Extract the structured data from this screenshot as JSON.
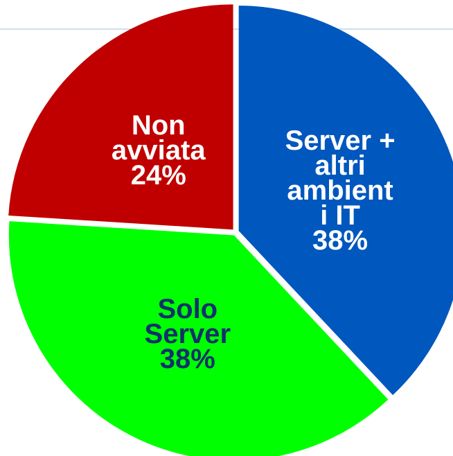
{
  "chart_data": {
    "type": "pie",
    "categories": [
      "Server + altri ambienti IT",
      "Solo Server",
      "Non avviata"
    ],
    "values": [
      38,
      38,
      24
    ],
    "value_labels": [
      "38%",
      "38%",
      "24%"
    ],
    "colors": [
      "#0057bd",
      "#00ff00",
      "#c00000"
    ],
    "label_colors": [
      "#ffffff",
      "#13306b",
      "#ffffff"
    ]
  }
}
